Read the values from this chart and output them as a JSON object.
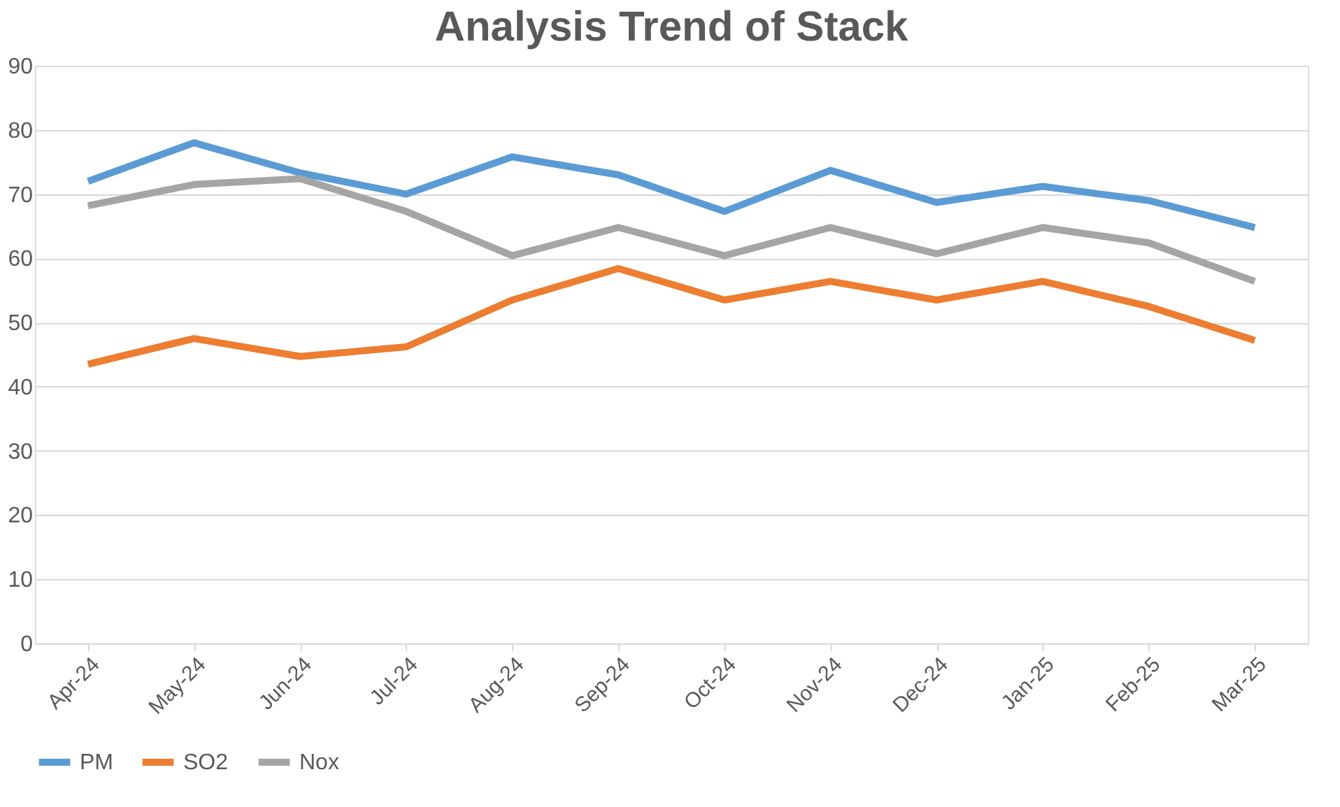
{
  "chart_data": {
    "type": "line",
    "title": "Analysis Trend of Stack",
    "categories": [
      "Apr-24",
      "May-24",
      "Jun-24",
      "Jul-24",
      "Aug-24",
      "Sep-24",
      "Oct-24",
      "Nov-24",
      "Dec-24",
      "Jan-25",
      "Feb-25",
      "Mar-25"
    ],
    "series": [
      {
        "name": "PM",
        "color": "#5b9bd5",
        "values": [
          72,
          78,
          73.3,
          70,
          75.8,
          73,
          67.3,
          73.7,
          68.7,
          71.2,
          69,
          64.8
        ]
      },
      {
        "name": "SO2",
        "color": "#ed7d31",
        "values": [
          43.5,
          47.5,
          44.7,
          46.2,
          53.5,
          58.4,
          53.5,
          56.4,
          53.5,
          56.4,
          52.5,
          47.2
        ]
      },
      {
        "name": "Nox",
        "color": "#a5a5a5",
        "values": [
          68.2,
          71.5,
          72.4,
          67.3,
          60.4,
          64.8,
          60.4,
          64.8,
          60.7,
          64.8,
          62.4,
          56.4
        ]
      }
    ],
    "ylim": [
      0,
      90
    ],
    "yticks": [
      0,
      10,
      20,
      30,
      40,
      50,
      60,
      70,
      80,
      90
    ],
    "grid": "y",
    "legend": "bottom",
    "marker": "none",
    "line_style": "solid"
  }
}
